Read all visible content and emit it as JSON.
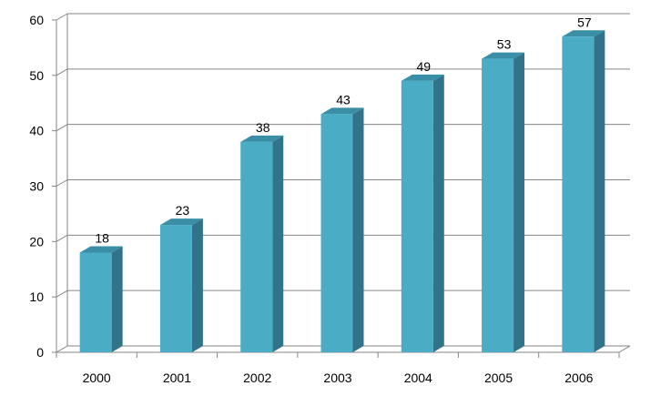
{
  "chart_data": {
    "type": "bar",
    "title": "",
    "xlabel": "",
    "ylabel": "",
    "categories": [
      "2000",
      "2001",
      "2002",
      "2003",
      "2004",
      "2005",
      "2006"
    ],
    "values": [
      18,
      23,
      38,
      43,
      49,
      53,
      57
    ],
    "ylim": [
      0,
      60
    ],
    "yticks": [
      0,
      10,
      20,
      30,
      40,
      50,
      60
    ],
    "grid": true,
    "legend": "none",
    "bar_style": "3d",
    "colors": {
      "bar_front": "#4BACC6",
      "bar_side": "#31748A",
      "bar_top": "#3A8FA6",
      "grid": "#868686",
      "axis": "#868686"
    }
  }
}
